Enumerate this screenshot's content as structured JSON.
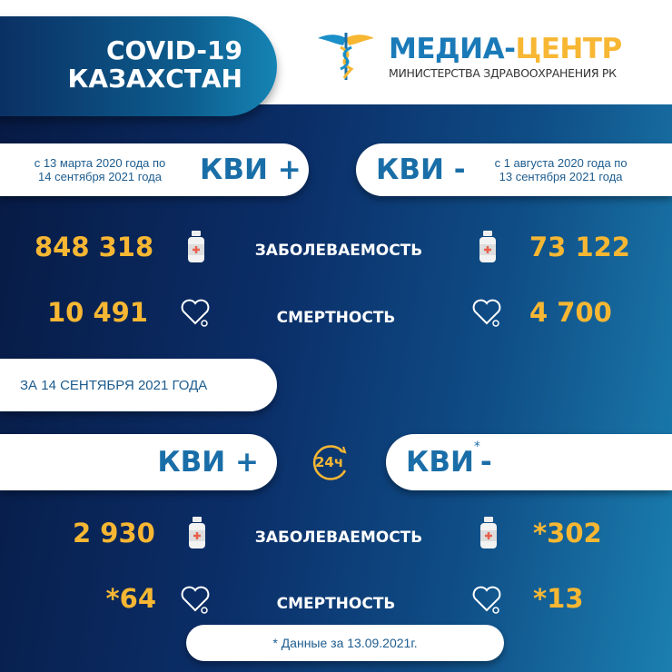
{
  "header": {
    "title_line1": "COVID-19",
    "title_line2": "КАЗАХСТАН",
    "logo_part1": "МЕДИА-",
    "logo_part2": "ЦЕНТР",
    "logo_sub": "МИНИСТЕРСТВА ЗДРАВООХРАНЕНИЯ РК"
  },
  "cumulative": {
    "left": {
      "period_line1": "с 13 марта 2020 года по",
      "period_line2": "14 сентября 2021 года",
      "label": "КВИ +",
      "cases": "848 318",
      "deaths": "10 491"
    },
    "right": {
      "period_line1": "с 1 августа 2020 года по",
      "period_line2": "13 сентября 2021 года",
      "label": "КВИ -",
      "cases": "73 122",
      "deaths": "4 700"
    },
    "cases_label": "ЗАБОЛЕВАЕМОСТЬ",
    "deaths_label": "СМЕРТНОСТЬ"
  },
  "daily": {
    "date_label": "ЗА 14 СЕНТЯБРЯ 2021 ГОДА",
    "badge": "24ч",
    "left": {
      "label": "КВИ +",
      "cases": "2 930",
      "deaths": "*64"
    },
    "right": {
      "label": "КВИ",
      "asterisk": "*",
      "suffix": "-",
      "cases": "*302",
      "deaths": "*13"
    },
    "cases_label": "ЗАБОЛЕВАЕМОСТЬ",
    "deaths_label": "СМЕРТНОСТЬ",
    "footnote": "* Данные за 13.09.2021г."
  },
  "colors": {
    "accent": "#f7b733",
    "brand_blue": "#1a6ea8",
    "background_dark": "#071a44"
  }
}
